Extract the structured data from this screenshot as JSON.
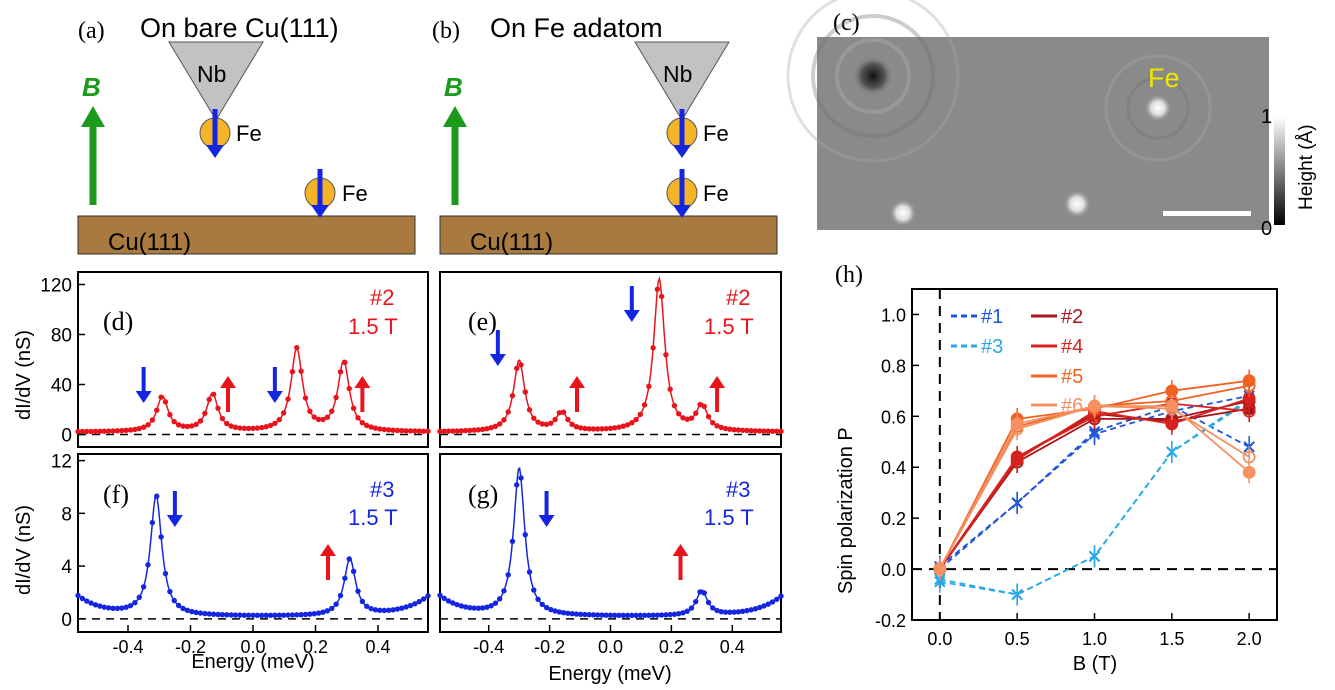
{
  "panels": {
    "a": {
      "label": "(a)",
      "title": "On bare Cu(111)",
      "tip": "Nb",
      "atom": "Fe",
      "substrate": "Cu(111)",
      "field": "B"
    },
    "b": {
      "label": "(b)",
      "title": "On Fe adatom",
      "tip": "Nb",
      "atom": "Fe",
      "substrate": "Cu(111)",
      "field": "B"
    },
    "c": {
      "label": "(c)",
      "atom": "Fe",
      "colorbar_label": "Height (Å)",
      "colorbar_max": "1",
      "colorbar_min": "0"
    },
    "d": {
      "label": "(d)",
      "sample": "#2",
      "field": "1.5 T"
    },
    "e": {
      "label": "(e)",
      "sample": "#2",
      "field": "1.5 T"
    },
    "f": {
      "label": "(f)",
      "sample": "#3",
      "field": "1.5 T"
    },
    "g": {
      "label": "(g)",
      "sample": "#3",
      "field": "1.5 T"
    },
    "h": {
      "label": "(h)"
    }
  },
  "colors": {
    "red": "#e8141c",
    "blue": "#1426e0",
    "green": "#1b9a1b",
    "cu": "#a87a3f",
    "fe": "#f5b428",
    "tip": "#c2c2c2",
    "s1": "#1f57d6",
    "s3": "#27a9e8",
    "s2": "#a8141a",
    "s4": "#d6231e",
    "s5": "#f06222",
    "s6": "#f59060"
  },
  "axes": {
    "dIdV_label": "dI/dV (nS)",
    "energy_label": "Energy (meV)",
    "energy_ticks": [
      "-0.4",
      "-0.2",
      "0.0",
      "0.2",
      "0.4"
    ],
    "top_yticks": [
      "0",
      "40",
      "80",
      "120"
    ],
    "bottom_yticks": [
      "0",
      "4",
      "8",
      "12"
    ],
    "h_ylabel": "Spin polarization  P",
    "h_xlabel": "B (T)",
    "h_yticks": [
      "-0.2",
      "0.0",
      "0.2",
      "0.4",
      "0.6",
      "0.8",
      "1.0"
    ],
    "h_xticks": [
      "0.0",
      "0.5",
      "1.0",
      "1.5",
      "2.0"
    ]
  },
  "chart_data": [
    {
      "panel": "d",
      "type": "line",
      "xlabel": "Energy (meV)",
      "ylabel": "dI/dV (nS)",
      "xlim": [
        -0.56,
        0.56
      ],
      "ylim": [
        -10,
        130
      ],
      "peaks": [
        {
          "x": -0.29,
          "y": 30
        },
        {
          "x": -0.13,
          "y": 32
        },
        {
          "x": 0.14,
          "y": 68
        },
        {
          "x": 0.29,
          "y": 58
        }
      ],
      "baseline": 2,
      "arrows": [
        {
          "x": -0.35,
          "dir": "down"
        },
        {
          "x": -0.08,
          "dir": "up"
        },
        {
          "x": 0.07,
          "dir": "down"
        },
        {
          "x": 0.35,
          "dir": "up"
        }
      ]
    },
    {
      "panel": "e",
      "type": "line",
      "xlabel": "Energy (meV)",
      "ylabel": "dI/dV (nS)",
      "xlim": [
        -0.56,
        0.56
      ],
      "ylim": [
        -10,
        130
      ],
      "peaks": [
        {
          "x": -0.3,
          "y": 59
        },
        {
          "x": -0.16,
          "y": 17
        },
        {
          "x": 0.16,
          "y": 124
        },
        {
          "x": 0.3,
          "y": 22
        }
      ],
      "baseline": 2,
      "arrows": [
        {
          "x": -0.37,
          "dir": "down"
        },
        {
          "x": -0.11,
          "dir": "up"
        },
        {
          "x": 0.07,
          "dir": "down"
        },
        {
          "x": 0.35,
          "dir": "up"
        }
      ]
    },
    {
      "panel": "f",
      "type": "line",
      "xlabel": "Energy (meV)",
      "ylabel": "dI/dV (nS)",
      "xlim": [
        -0.56,
        0.56
      ],
      "ylim": [
        -1,
        12.5
      ],
      "peaks": [
        {
          "x": -0.31,
          "y": 9.3
        },
        {
          "x": 0.31,
          "y": 4.5
        }
      ],
      "baseline": 0.2,
      "edge": 1.5,
      "arrows": [
        {
          "x": -0.25,
          "dir": "down"
        },
        {
          "x": 0.24,
          "dir": "up"
        }
      ]
    },
    {
      "panel": "g",
      "type": "line",
      "xlabel": "Energy (meV)",
      "ylabel": "dI/dV (nS)",
      "xlim": [
        -0.56,
        0.56
      ],
      "ylim": [
        -1,
        12.5
      ],
      "peaks": [
        {
          "x": -0.3,
          "y": 11.4
        },
        {
          "x": 0.3,
          "y": 2.1
        }
      ],
      "baseline": 0.2,
      "edge": 1.5,
      "arrows": [
        {
          "x": -0.21,
          "dir": "down"
        },
        {
          "x": 0.23,
          "dir": "up"
        }
      ]
    },
    {
      "panel": "h",
      "type": "line",
      "xlabel": "B (T)",
      "ylabel": "Spin polarization P",
      "xlim": [
        -0.18,
        2.18
      ],
      "ylim": [
        -0.2,
        1.1
      ],
      "legend_position": "top-left",
      "series": [
        {
          "name": "#1",
          "color": "#1f57d6",
          "dash": true,
          "x": [
            0,
            0.5,
            1.0,
            1.5,
            2.0
          ],
          "y": [
            0.0,
            0.26,
            0.54,
            0.64,
            0.48
          ]
        },
        {
          "name": "#1",
          "color": "#1f57d6",
          "dash": true,
          "x": [
            0,
            0.5,
            1.0,
            1.5,
            2.0
          ],
          "y": [
            0.01,
            0.26,
            0.53,
            0.62,
            0.68
          ]
        },
        {
          "name": "#3",
          "color": "#27a9e8",
          "dash": true,
          "x": [
            0,
            0.5,
            1.0,
            1.5,
            2.0
          ],
          "y": [
            -0.04,
            -0.1,
            0.05,
            0.46,
            0.67
          ]
        },
        {
          "name": "#3",
          "color": "#27a9e8",
          "dash": true,
          "x": [
            0,
            0.5,
            1.0,
            1.5,
            2.0
          ],
          "y": [
            -0.05,
            -0.1,
            0.05,
            0.46,
            0.66
          ]
        },
        {
          "name": "#2",
          "color": "#a8141a",
          "dash": false,
          "x": [
            0,
            0.5,
            1.0,
            1.5,
            2.0
          ],
          "y": [
            0.0,
            0.44,
            0.61,
            0.58,
            0.63
          ]
        },
        {
          "name": "#2",
          "color": "#a8141a",
          "dash": false,
          "x": [
            0,
            0.5,
            1.0,
            1.5,
            2.0
          ],
          "y": [
            0.0,
            0.42,
            0.59,
            0.59,
            0.66
          ]
        },
        {
          "name": "#4",
          "color": "#d6231e",
          "dash": false,
          "x": [
            0,
            0.5,
            1.0,
            1.5,
            2.0
          ],
          "y": [
            0.0,
            0.43,
            0.62,
            0.57,
            0.67
          ]
        },
        {
          "name": "#4",
          "color": "#d6231e",
          "dash": false,
          "x": [
            0,
            0.5,
            1.0,
            1.5,
            2.0
          ],
          "y": [
            0.0,
            0.44,
            0.6,
            0.65,
            0.62
          ]
        },
        {
          "name": "#5",
          "color": "#f06222",
          "dash": false,
          "x": [
            0,
            0.5,
            1.0,
            1.5,
            2.0
          ],
          "y": [
            0.0,
            0.59,
            0.63,
            0.7,
            0.74
          ]
        },
        {
          "name": "#5",
          "color": "#f06222",
          "dash": false,
          "x": [
            0,
            0.5,
            1.0,
            1.5,
            2.0
          ],
          "y": [
            0.0,
            0.56,
            0.64,
            0.66,
            0.72
          ]
        },
        {
          "name": "#6",
          "color": "#f59060",
          "dash": false,
          "x": [
            0,
            0.5,
            1.0,
            1.5,
            2.0
          ],
          "y": [
            0.0,
            0.57,
            0.64,
            0.64,
            0.38
          ]
        },
        {
          "name": "#6",
          "color": "#f59060",
          "dash": false,
          "x": [
            0,
            0.5,
            1.0,
            1.5,
            2.0
          ],
          "y": [
            0.0,
            0.55,
            0.64,
            0.63,
            0.44
          ]
        }
      ]
    }
  ]
}
